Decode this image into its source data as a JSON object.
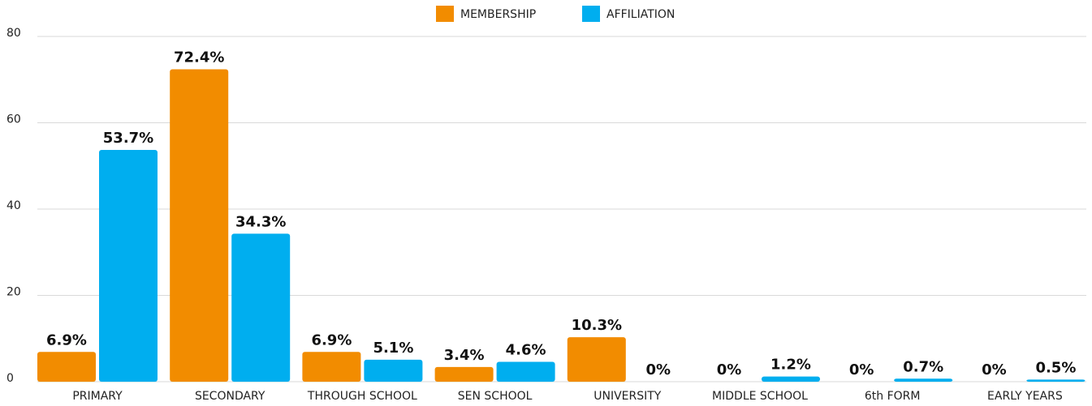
{
  "chart_data": {
    "type": "bar",
    "categories": [
      "PRIMARY",
      "SECONDARY",
      "THROUGH SCHOOL",
      "SEN SCHOOL",
      "UNIVERSITY",
      "MIDDLE SCHOOL",
      "6th FORM",
      "EARLY YEARS"
    ],
    "series": [
      {
        "name": "MEMBERSHIP",
        "color": "#f28c00",
        "values": [
          6.9,
          72.4,
          6.9,
          3.4,
          10.3,
          0,
          0,
          0
        ],
        "value_labels": [
          "6.9%",
          "72.4%",
          "6.9%",
          "3.4%",
          "10.3%",
          "0%",
          "0%",
          "0%"
        ]
      },
      {
        "name": "AFFILIATION",
        "color": "#00aeef",
        "values": [
          53.7,
          34.3,
          5.1,
          4.6,
          0,
          1.2,
          0.7,
          0.5
        ],
        "value_labels": [
          "53.7%",
          "34.3%",
          "5.1%",
          "4.6%",
          "0%",
          "1.2%",
          "0.7%",
          "0.5%"
        ]
      }
    ],
    "ylim": [
      0,
      80
    ],
    "yticks": [
      0,
      20,
      40,
      60,
      80
    ],
    "grid": true,
    "legend": "top"
  }
}
